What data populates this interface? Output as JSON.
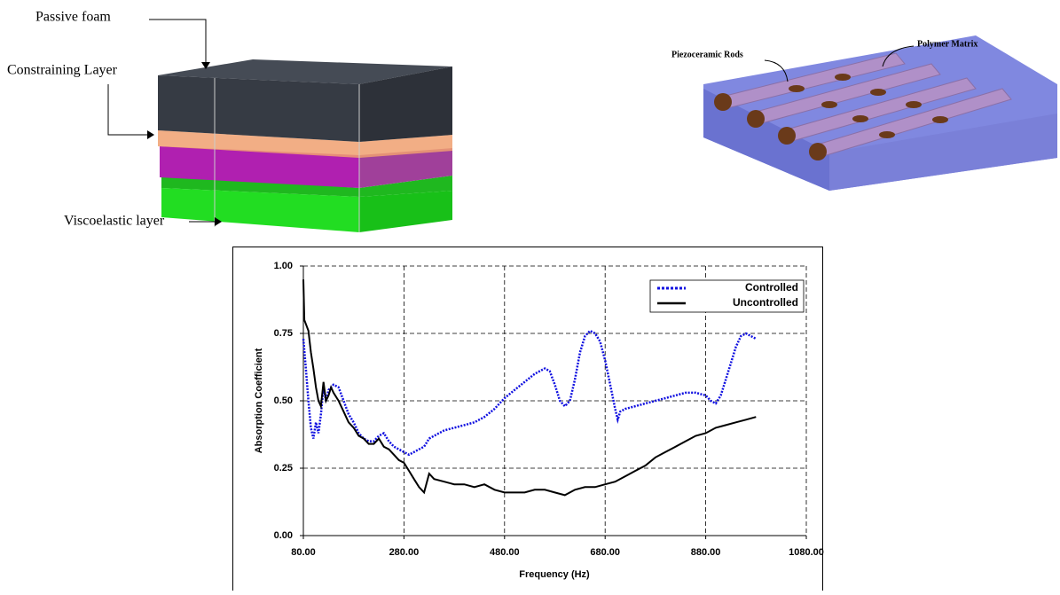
{
  "diagrams": {
    "left": {
      "labels": [
        "Passive foam",
        "Constraining Layer",
        "Viscoelastic layer"
      ]
    },
    "right": {
      "labels": [
        "Piezoceramic Rods",
        "Polymer Matrix"
      ]
    }
  },
  "chart_data": {
    "type": "line",
    "x_label": "Frequency (Hz)",
    "y_label": "Absorption Coefficient",
    "xlim": [
      80,
      1080
    ],
    "xticks": [
      {
        "value": 80,
        "label": "80.00"
      },
      {
        "value": 280,
        "label": "280.00"
      },
      {
        "value": 480,
        "label": "480.00"
      },
      {
        "value": 680,
        "label": "680.00"
      },
      {
        "value": 880,
        "label": "880.00"
      },
      {
        "value": 1080,
        "label": "1080.00"
      }
    ],
    "ylim": [
      0,
      1
    ],
    "yticks": [
      {
        "value": 0,
        "label": "0.00"
      },
      0.25,
      {
        "value": 0.5,
        "label": "0.50"
      },
      0.75,
      {
        "value": 1,
        "label": "1.00"
      }
    ],
    "grid": true,
    "legend": "upper right",
    "series": [
      {
        "name": "Controlled",
        "color": "#1010e0",
        "style": "dotted",
        "x": [
          80,
          85,
          90,
          95,
          100,
          105,
          110,
          115,
          120,
          125,
          130,
          140,
          150,
          160,
          170,
          180,
          190,
          200,
          210,
          220,
          230,
          240,
          250,
          260,
          270,
          280,
          290,
          300,
          310,
          320,
          330,
          340,
          360,
          380,
          400,
          420,
          440,
          460,
          480,
          500,
          520,
          540,
          560,
          570,
          580,
          590,
          600,
          610,
          620,
          630,
          640,
          650,
          660,
          670,
          680,
          690,
          700,
          705,
          710,
          720,
          740,
          760,
          780,
          800,
          820,
          840,
          860,
          880,
          890,
          900,
          910,
          920,
          930,
          940,
          950,
          960,
          970,
          980
        ],
        "values": [
          0.73,
          0.62,
          0.5,
          0.4,
          0.36,
          0.42,
          0.38,
          0.45,
          0.55,
          0.5,
          0.54,
          0.56,
          0.55,
          0.5,
          0.45,
          0.42,
          0.38,
          0.36,
          0.35,
          0.35,
          0.37,
          0.38,
          0.35,
          0.33,
          0.32,
          0.31,
          0.3,
          0.31,
          0.32,
          0.33,
          0.36,
          0.37,
          0.39,
          0.4,
          0.41,
          0.42,
          0.44,
          0.47,
          0.51,
          0.54,
          0.57,
          0.6,
          0.62,
          0.61,
          0.56,
          0.5,
          0.48,
          0.5,
          0.58,
          0.68,
          0.74,
          0.76,
          0.75,
          0.72,
          0.65,
          0.56,
          0.47,
          0.43,
          0.46,
          0.47,
          0.48,
          0.49,
          0.5,
          0.51,
          0.52,
          0.53,
          0.53,
          0.52,
          0.5,
          0.49,
          0.52,
          0.58,
          0.64,
          0.7,
          0.74,
          0.75,
          0.74,
          0.73
        ]
      },
      {
        "name": "Uncontrolled",
        "color": "#000000",
        "style": "solid",
        "x": [
          80,
          82,
          90,
          95,
          100,
          105,
          110,
          115,
          120,
          125,
          130,
          135,
          140,
          150,
          160,
          170,
          180,
          190,
          200,
          210,
          220,
          230,
          240,
          250,
          260,
          270,
          280,
          290,
          300,
          310,
          320,
          330,
          340,
          360,
          380,
          400,
          420,
          440,
          460,
          480,
          500,
          520,
          540,
          560,
          580,
          600,
          620,
          640,
          660,
          680,
          700,
          720,
          740,
          760,
          780,
          800,
          820,
          840,
          860,
          880,
          900,
          920,
          940,
          960,
          980
        ],
        "values": [
          0.95,
          0.8,
          0.76,
          0.68,
          0.62,
          0.55,
          0.5,
          0.48,
          0.57,
          0.5,
          0.52,
          0.55,
          0.53,
          0.5,
          0.46,
          0.42,
          0.4,
          0.37,
          0.36,
          0.34,
          0.34,
          0.36,
          0.33,
          0.32,
          0.3,
          0.28,
          0.27,
          0.24,
          0.21,
          0.18,
          0.16,
          0.23,
          0.21,
          0.2,
          0.19,
          0.19,
          0.18,
          0.19,
          0.17,
          0.16,
          0.16,
          0.16,
          0.17,
          0.17,
          0.16,
          0.15,
          0.17,
          0.18,
          0.18,
          0.19,
          0.2,
          0.22,
          0.24,
          0.26,
          0.29,
          0.31,
          0.33,
          0.35,
          0.37,
          0.38,
          0.4,
          0.41,
          0.42,
          0.43,
          0.44
        ]
      }
    ]
  }
}
